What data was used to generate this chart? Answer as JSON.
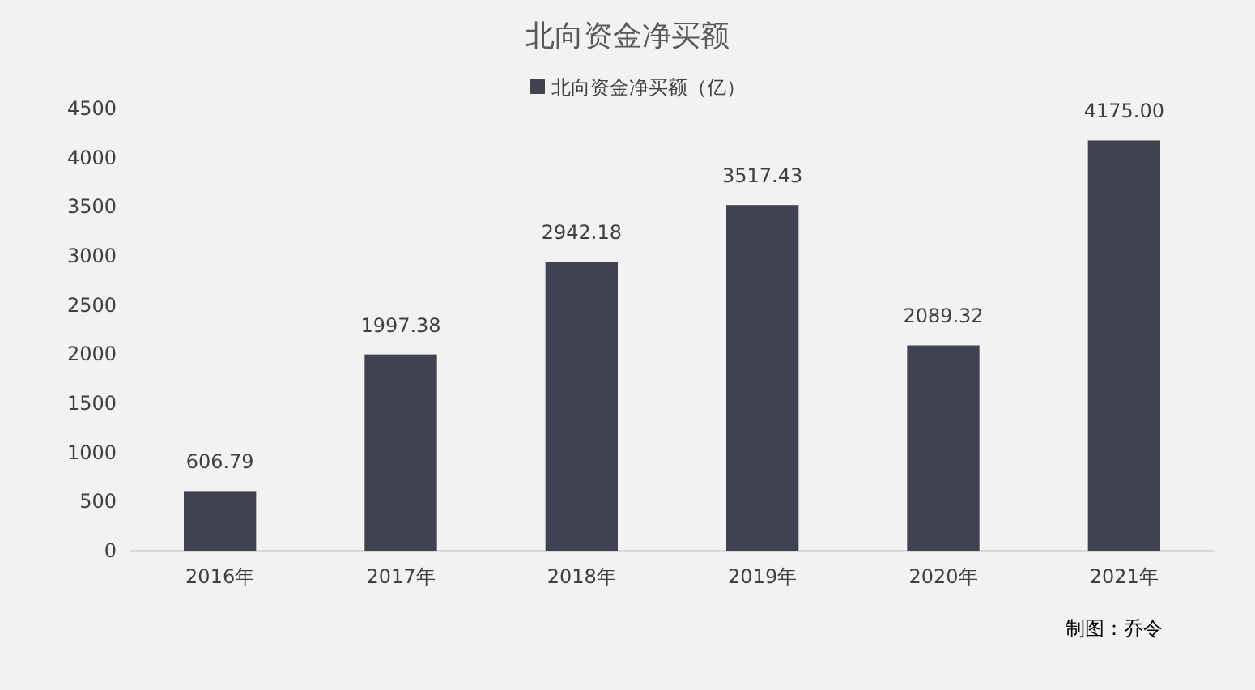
{
  "chart_data": {
    "type": "bar",
    "title": "北向资金净买额",
    "categories": [
      "2016年",
      "2017年",
      "2018年",
      "2019年",
      "2020年",
      "2021年"
    ],
    "series": [
      {
        "name": "北向资金净买额（亿）",
        "color": "#404252",
        "values": [
          606.79,
          1997.38,
          2942.18,
          3517.43,
          2089.32,
          4175
        ],
        "value_labels": [
          "606.79",
          "1997.38",
          "2942.18",
          "3517.43",
          "2089.32",
          "4175.00"
        ]
      }
    ],
    "ylim": [
      0,
      4500
    ],
    "yticks": [
      0,
      500,
      1000,
      1500,
      2000,
      2500,
      3000,
      3500,
      4000,
      4500
    ],
    "grid": false,
    "legend": "top",
    "annotations": [
      "制图：乔令"
    ]
  }
}
